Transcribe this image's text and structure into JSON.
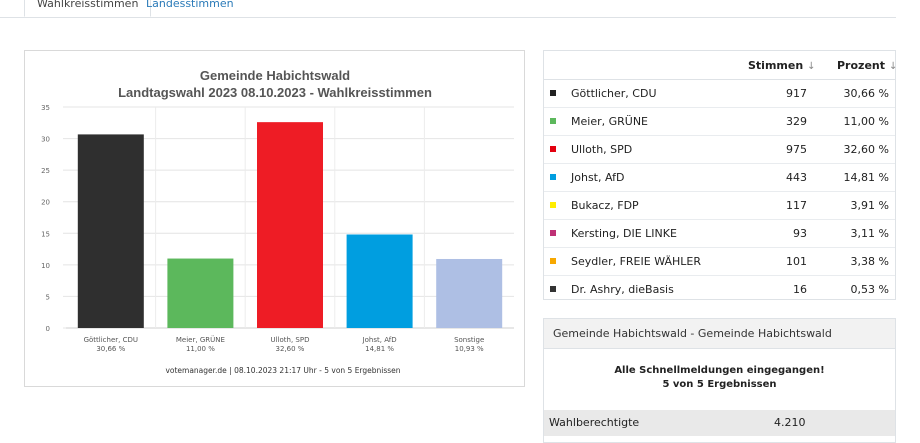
{
  "tabs": [
    {
      "label": "Wahlkreisstimmen",
      "active": true
    },
    {
      "label": "Landesstimmen",
      "active": false
    }
  ],
  "chart_data": {
    "type": "bar",
    "title": "Gemeinde Habichtswald",
    "subtitle": "Landtagswahl 2023 08.10.2023  - Wahlkreisstimmen",
    "categories": [
      "Göttlicher, CDU",
      "Meier, GRÜNE",
      "Ulloth, SPD",
      "Johst, AfD",
      "Sonstige"
    ],
    "values": [
      30.66,
      11.0,
      32.6,
      14.81,
      10.93
    ],
    "value_labels": [
      "30,66 %",
      "11,00 %",
      "32,60 %",
      "14,81 %",
      "10,93 %"
    ],
    "colors": [
      "#2f2f2f",
      "#5cb85c",
      "#ee1c25",
      "#009ee0",
      "#aebfe4"
    ],
    "ylim": [
      0,
      35
    ],
    "yticks": [
      0,
      5,
      10,
      15,
      20,
      25,
      30,
      35
    ],
    "grid": true,
    "footer": "votemanager.de | 08.10.2023 21:17 Uhr - 5 von 5 Ergebnissen"
  },
  "results_table": {
    "headers": {
      "votes": "Stimmen",
      "percent": "Prozent",
      "sort_icon": "sort-arrow-icon"
    },
    "rows": [
      {
        "name": "Göttlicher, CDU",
        "votes": "917",
        "percent": "30,66 %",
        "color": "#222222"
      },
      {
        "name": "Meier, GRÜNE",
        "votes": "329",
        "percent": "11,00 %",
        "color": "#5cb85c"
      },
      {
        "name": "Ulloth, SPD",
        "votes": "975",
        "percent": "32,60 %",
        "color": "#e3000f"
      },
      {
        "name": "Johst, AfD",
        "votes": "443",
        "percent": "14,81 %",
        "color": "#009ee0"
      },
      {
        "name": "Bukacz, FDP",
        "votes": "117",
        "percent": "3,91 %",
        "color": "#ffed00"
      },
      {
        "name": "Kersting, DIE LINKE",
        "votes": "93",
        "percent": "3,11 %",
        "color": "#be3075"
      },
      {
        "name": "Seydler, FREIE WÄHLER",
        "votes": "101",
        "percent": "3,38 %",
        "color": "#f7a800"
      },
      {
        "name": "Dr. Ashry, dieBasis",
        "votes": "16",
        "percent": "0,53 %",
        "color": "#333333"
      }
    ]
  },
  "summary": {
    "heading": "Gemeinde Habichtswald - Gemeinde Habichtswald",
    "message_line1": "Alle Schnellmeldungen eingegangen!",
    "message_line2": "5 von 5 Ergebnissen",
    "eligible_label": "Wahlberechtigte",
    "eligible_value": "4.210"
  }
}
